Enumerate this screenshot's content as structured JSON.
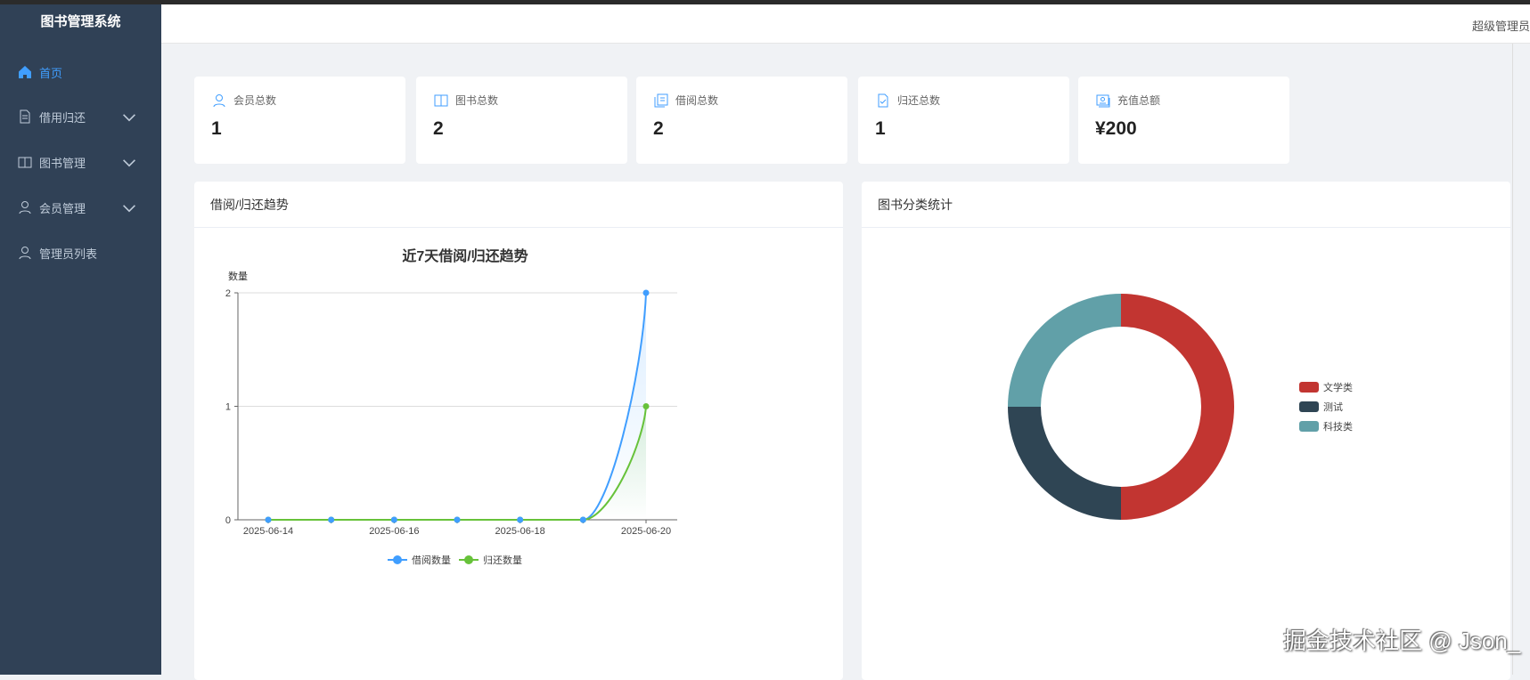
{
  "app": {
    "title": "图书管理系统",
    "user": "超级管理员"
  },
  "sidebar": {
    "items": [
      {
        "label": "首页",
        "icon": "home-icon",
        "active": true
      },
      {
        "label": "借用归还",
        "icon": "document-icon",
        "expandable": true
      },
      {
        "label": "图书管理",
        "icon": "book-icon",
        "expandable": true
      },
      {
        "label": "会员管理",
        "icon": "user-icon",
        "expandable": true
      },
      {
        "label": "管理员列表",
        "icon": "user-icon"
      }
    ]
  },
  "stats": [
    {
      "label": "会员总数",
      "value": "1",
      "icon": "user-icon"
    },
    {
      "label": "图书总数",
      "value": "2",
      "icon": "book-icon"
    },
    {
      "label": "借阅总数",
      "value": "2",
      "icon": "document-copy-icon"
    },
    {
      "label": "归还总数",
      "value": "1",
      "icon": "document-checked-icon"
    },
    {
      "label": "充值总额",
      "value": "¥200",
      "icon": "wallet-icon"
    }
  ],
  "panels": {
    "trend_title": "借阅/归还趋势",
    "category_title": "图书分类统计"
  },
  "colors": {
    "accent": "#409eff",
    "sidebar": "#304156"
  },
  "watermark": "掘金技术社区 @ Json_",
  "chart_data": [
    {
      "type": "line",
      "title": "近7天借阅/归还趋势",
      "ylabel": "数量",
      "x": [
        "2025-06-14",
        "2025-06-15",
        "2025-06-16",
        "2025-06-17",
        "2025-06-18",
        "2025-06-19",
        "2025-06-20"
      ],
      "xtick_labels": [
        "2025-06-14",
        "2025-06-16",
        "2025-06-18",
        "2025-06-20"
      ],
      "ylim": [
        0,
        2
      ],
      "yticks": [
        0,
        1,
        2
      ],
      "smooth": true,
      "legend": "bottom",
      "series": [
        {
          "name": "借阅数量",
          "values": [
            0,
            0,
            0,
            0,
            0,
            0,
            2
          ],
          "color": "#409eff"
        },
        {
          "name": "归还数量",
          "values": [
            0,
            0,
            0,
            0,
            0,
            0,
            1
          ],
          "color": "#67c23a"
        }
      ]
    },
    {
      "type": "pie",
      "donut": true,
      "legend": "right",
      "categories": [
        "文学类",
        "测试",
        "科技类"
      ],
      "values": [
        2,
        1,
        1
      ],
      "colors": [
        "#c23531",
        "#2f4554",
        "#61a0a8"
      ]
    }
  ]
}
